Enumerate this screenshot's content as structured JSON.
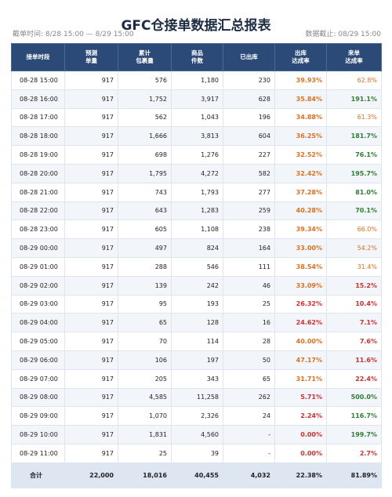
{
  "header": {
    "title": "GFC仓接单数据汇总报表",
    "left_note": "截单时间: 8/28 15:00 — 8/29 15:00",
    "right_note": "数据截止: 08/29 15:00"
  },
  "table": {
    "columns": [
      [
        "接单时段"
      ],
      [
        "预测",
        "单量"
      ],
      [
        "累计",
        "包裹量"
      ],
      [
        "商品",
        "件数"
      ],
      [
        "已出库"
      ],
      [
        "出库",
        "达成率"
      ],
      [
        "来单",
        "达成率"
      ]
    ],
    "colors": {
      "high": "#2e7d32",
      "mid": "#e0701e",
      "low": "#d32f2f"
    },
    "rows": [
      [
        "08-28 15:00",
        "917",
        "576",
        "1,180",
        "230",
        "39.93%",
        "62.8%"
      ],
      [
        "08-28 16:00",
        "917",
        "1,752",
        "3,917",
        "628",
        "35.84%",
        "191.1%"
      ],
      [
        "08-28 17:00",
        "917",
        "562",
        "1,043",
        "196",
        "34.88%",
        "61.3%"
      ],
      [
        "08-28 18:00",
        "917",
        "1,666",
        "3,813",
        "604",
        "36.25%",
        "181.7%"
      ],
      [
        "08-28 19:00",
        "917",
        "698",
        "1,276",
        "227",
        "32.52%",
        "76.1%"
      ],
      [
        "08-28 20:00",
        "917",
        "1,795",
        "4,272",
        "582",
        "32.42%",
        "195.7%"
      ],
      [
        "08-28 21:00",
        "917",
        "743",
        "1,793",
        "277",
        "37.28%",
        "81.0%"
      ],
      [
        "08-28 22:00",
        "917",
        "643",
        "1,283",
        "259",
        "40.28%",
        "70.1%"
      ],
      [
        "08-28 23:00",
        "917",
        "605",
        "1,108",
        "238",
        "39.34%",
        "66.0%"
      ],
      [
        "08-29 00:00",
        "917",
        "497",
        "824",
        "164",
        "33.00%",
        "54.2%"
      ],
      [
        "08-29 01:00",
        "917",
        "288",
        "546",
        "111",
        "38.54%",
        "31.4%"
      ],
      [
        "08-29 02:00",
        "917",
        "139",
        "242",
        "46",
        "33.09%",
        "15.2%"
      ],
      [
        "08-29 03:00",
        "917",
        "95",
        "193",
        "25",
        "26.32%",
        "10.4%"
      ],
      [
        "08-29 04:00",
        "917",
        "65",
        "128",
        "16",
        "24.62%",
        "7.1%"
      ],
      [
        "08-29 05:00",
        "917",
        "70",
        "114",
        "28",
        "40.00%",
        "7.6%"
      ],
      [
        "08-29 06:00",
        "917",
        "106",
        "197",
        "50",
        "47.17%",
        "11.6%"
      ],
      [
        "08-29 07:00",
        "917",
        "205",
        "343",
        "65",
        "31.71%",
        "22.4%"
      ],
      [
        "08-29 08:00",
        "917",
        "4,585",
        "11,258",
        "262",
        "5.71%",
        "500.0%"
      ],
      [
        "08-29 09:00",
        "917",
        "1,070",
        "2,326",
        "24",
        "2.24%",
        "116.7%"
      ],
      [
        "08-29 10:00",
        "917",
        "1,831",
        "4,560",
        "-",
        "0.00%",
        "199.7%"
      ],
      [
        "08-29 11:00",
        "917",
        "25",
        "39",
        "-",
        "0.00%",
        "2.7%"
      ]
    ],
    "row_tones": [
      [
        "mid",
        "mid"
      ],
      [
        "mid",
        "high"
      ],
      [
        "mid",
        "mid"
      ],
      [
        "mid",
        "high"
      ],
      [
        "mid",
        "high"
      ],
      [
        "mid",
        "high"
      ],
      [
        "mid",
        "high"
      ],
      [
        "mid",
        "high"
      ],
      [
        "mid",
        "mid"
      ],
      [
        "mid",
        "mid"
      ],
      [
        "mid",
        "mid"
      ],
      [
        "mid",
        "low"
      ],
      [
        "low",
        "low"
      ],
      [
        "low",
        "low"
      ],
      [
        "mid",
        "low"
      ],
      [
        "mid",
        "low"
      ],
      [
        "mid",
        "low"
      ],
      [
        "low",
        "high"
      ],
      [
        "low",
        "high"
      ],
      [
        "low",
        "high"
      ],
      [
        "low",
        "low"
      ]
    ],
    "total": [
      "合计",
      "22,000",
      "18,016",
      "40,455",
      "4,032",
      "22.38%",
      "81.89%"
    ]
  }
}
